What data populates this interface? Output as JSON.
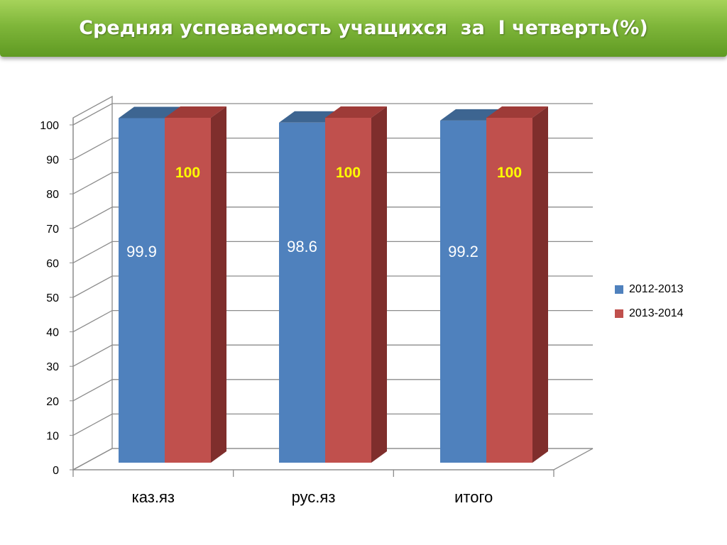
{
  "title": "Средняя успеваемость учащихся  за  I четверть(%)",
  "colors": {
    "series_front": [
      "#4f81bd",
      "#c0504d"
    ],
    "series_top": [
      "#3d6591",
      "#9e3b38"
    ],
    "series_side": [
      "#2f5079",
      "#7f2e2c"
    ],
    "label_colors": [
      "#ffffff",
      "#ffff00"
    ]
  },
  "chart_data": {
    "type": "bar",
    "categories": [
      "каз.яз",
      "рус.яз",
      "итого"
    ],
    "series": [
      {
        "name": "2012-2013",
        "values": [
          99.9,
          98.6,
          99.2
        ]
      },
      {
        "name": "2013-2014",
        "values": [
          100,
          100,
          100
        ]
      }
    ],
    "data_labels": [
      [
        "99.9",
        "98.6",
        "99.2"
      ],
      [
        "100",
        "100",
        "100"
      ]
    ],
    "yticks": [
      "0",
      "10",
      "20",
      "30",
      "40",
      "50",
      "60",
      "70",
      "80",
      "90",
      "100"
    ],
    "ylim": [
      0,
      100
    ],
    "grid": true,
    "legend": "right",
    "projection": "3d"
  }
}
